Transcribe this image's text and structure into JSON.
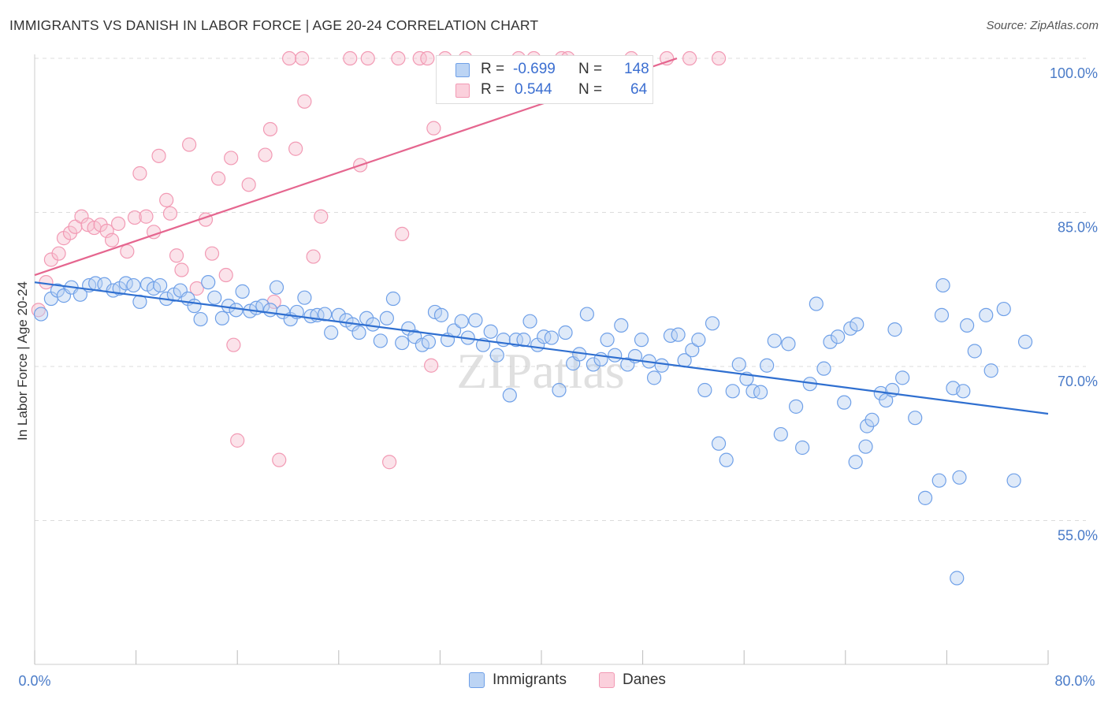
{
  "title": "IMMIGRANTS VS DANISH IN LABOR FORCE | AGE 20-24 CORRELATION CHART",
  "source": "Source: ZipAtlas.com",
  "watermark": "ZIPatlas",
  "legend": {
    "rows": [
      {
        "r_label": "R =",
        "r_value": "-0.699",
        "n_label": "N =",
        "n_value": "148",
        "color": "#a9c8f0"
      },
      {
        "r_label": "R =",
        "r_value": "0.544",
        "n_label": "N =",
        "n_value": "64",
        "color": "#f5b8c8"
      }
    ]
  },
  "bottom_legend": [
    {
      "label": "Immigrants",
      "color": "#a9c8f0"
    },
    {
      "label": "Danes",
      "color": "#f5b8c8"
    }
  ],
  "chart_data": {
    "type": "scatter",
    "title": "IMMIGRANTS VS DANISH IN LABOR FORCE | AGE 20-24 CORRELATION CHART",
    "xlabel": "",
    "ylabel": "In Labor Force | Age 20-24",
    "xlim": [
      0,
      80
    ],
    "ylim": [
      41,
      101
    ],
    "x_tick_labels": [
      "0.0%",
      "80.0%"
    ],
    "y_ticks": [
      55,
      70,
      85,
      100
    ],
    "y_tick_labels": [
      "55.0%",
      "70.0%",
      "85.0%",
      "100.0%"
    ],
    "grid": true,
    "legend_position": "top-center",
    "colors": {
      "immigrants": "#6fa0e8",
      "danes": "#f29ab4",
      "immigrants_line": "#2f6fd0",
      "danes_line": "#e5668f"
    },
    "series": [
      {
        "name": "Immigrants",
        "trend": {
          "x": [
            0,
            80
          ],
          "y": [
            78.2,
            65.4
          ]
        },
        "points": [
          [
            0.5,
            75.1
          ],
          [
            1.3,
            76.6
          ],
          [
            1.8,
            77.4
          ],
          [
            2.3,
            76.9
          ],
          [
            2.9,
            77.7
          ],
          [
            3.6,
            77.0
          ],
          [
            4.3,
            77.9
          ],
          [
            4.8,
            78.1
          ],
          [
            5.5,
            78.0
          ],
          [
            6.2,
            77.4
          ],
          [
            6.7,
            77.6
          ],
          [
            7.2,
            78.1
          ],
          [
            7.8,
            77.9
          ],
          [
            8.3,
            76.3
          ],
          [
            8.9,
            78.0
          ],
          [
            9.4,
            77.6
          ],
          [
            9.9,
            77.9
          ],
          [
            10.4,
            76.6
          ],
          [
            11.0,
            77.0
          ],
          [
            11.5,
            77.4
          ],
          [
            12.1,
            76.6
          ],
          [
            12.6,
            75.9
          ],
          [
            13.1,
            74.6
          ],
          [
            13.7,
            78.2
          ],
          [
            14.2,
            76.7
          ],
          [
            14.8,
            74.7
          ],
          [
            15.3,
            75.9
          ],
          [
            15.9,
            75.5
          ],
          [
            16.4,
            77.3
          ],
          [
            17.0,
            75.4
          ],
          [
            17.5,
            75.7
          ],
          [
            18.0,
            75.9
          ],
          [
            18.6,
            75.5
          ],
          [
            19.1,
            77.7
          ],
          [
            19.6,
            75.3
          ],
          [
            20.2,
            74.6
          ],
          [
            20.7,
            75.3
          ],
          [
            21.3,
            76.7
          ],
          [
            21.8,
            74.9
          ],
          [
            22.3,
            75.0
          ],
          [
            22.9,
            75.1
          ],
          [
            23.4,
            73.3
          ],
          [
            24.0,
            75.0
          ],
          [
            24.6,
            74.5
          ],
          [
            25.1,
            74.1
          ],
          [
            25.6,
            73.3
          ],
          [
            26.2,
            74.7
          ],
          [
            26.7,
            74.1
          ],
          [
            27.3,
            72.5
          ],
          [
            27.8,
            74.7
          ],
          [
            28.3,
            76.6
          ],
          [
            29.0,
            72.3
          ],
          [
            29.5,
            73.7
          ],
          [
            30.0,
            72.9
          ],
          [
            30.6,
            72.1
          ],
          [
            31.1,
            72.4
          ],
          [
            31.6,
            75.3
          ],
          [
            32.1,
            75.0
          ],
          [
            32.6,
            72.6
          ],
          [
            33.1,
            73.5
          ],
          [
            33.7,
            74.4
          ],
          [
            34.2,
            72.8
          ],
          [
            34.8,
            74.5
          ],
          [
            35.4,
            72.1
          ],
          [
            36.0,
            73.4
          ],
          [
            36.5,
            71.1
          ],
          [
            37.0,
            72.6
          ],
          [
            37.5,
            67.2
          ],
          [
            38.0,
            72.6
          ],
          [
            38.6,
            72.6
          ],
          [
            39.1,
            74.4
          ],
          [
            39.7,
            72.1
          ],
          [
            40.2,
            72.9
          ],
          [
            40.8,
            72.8
          ],
          [
            41.4,
            67.7
          ],
          [
            41.9,
            73.3
          ],
          [
            42.5,
            70.3
          ],
          [
            43.0,
            71.2
          ],
          [
            43.6,
            75.1
          ],
          [
            44.1,
            70.2
          ],
          [
            44.7,
            70.7
          ],
          [
            45.2,
            72.6
          ],
          [
            45.8,
            71.1
          ],
          [
            46.3,
            74.0
          ],
          [
            46.8,
            70.2
          ],
          [
            47.4,
            71.0
          ],
          [
            47.9,
            72.6
          ],
          [
            48.5,
            70.5
          ],
          [
            48.9,
            68.9
          ],
          [
            49.5,
            70.1
          ],
          [
            50.2,
            73.0
          ],
          [
            50.8,
            73.1
          ],
          [
            51.3,
            70.6
          ],
          [
            51.9,
            71.6
          ],
          [
            52.4,
            72.6
          ],
          [
            52.9,
            67.7
          ],
          [
            53.5,
            74.2
          ],
          [
            54.0,
            62.5
          ],
          [
            54.6,
            60.9
          ],
          [
            55.1,
            67.6
          ],
          [
            55.6,
            70.2
          ],
          [
            56.2,
            68.8
          ],
          [
            56.7,
            67.6
          ],
          [
            57.3,
            67.5
          ],
          [
            57.8,
            70.1
          ],
          [
            58.4,
            72.5
          ],
          [
            58.9,
            63.4
          ],
          [
            59.5,
            72.2
          ],
          [
            60.1,
            66.1
          ],
          [
            60.6,
            62.1
          ],
          [
            61.2,
            68.3
          ],
          [
            61.7,
            76.1
          ],
          [
            62.3,
            69.8
          ],
          [
            62.8,
            72.4
          ],
          [
            63.4,
            72.9
          ],
          [
            63.9,
            66.5
          ],
          [
            64.4,
            73.7
          ],
          [
            64.9,
            74.1
          ],
          [
            64.8,
            60.7
          ],
          [
            65.6,
            62.2
          ],
          [
            65.7,
            64.2
          ],
          [
            66.1,
            64.8
          ],
          [
            66.8,
            67.4
          ],
          [
            67.2,
            66.7
          ],
          [
            67.7,
            67.7
          ],
          [
            67.9,
            73.6
          ],
          [
            68.5,
            68.9
          ],
          [
            69.5,
            65.0
          ],
          [
            70.3,
            57.2
          ],
          [
            71.4,
            58.9
          ],
          [
            71.6,
            75.0
          ],
          [
            71.7,
            77.9
          ],
          [
            72.5,
            67.9
          ],
          [
            73.0,
            59.2
          ],
          [
            73.3,
            67.6
          ],
          [
            73.6,
            74.0
          ],
          [
            74.2,
            71.5
          ],
          [
            75.1,
            75.0
          ],
          [
            75.5,
            69.6
          ],
          [
            76.5,
            75.6
          ],
          [
            77.3,
            58.9
          ],
          [
            78.2,
            72.4
          ],
          [
            72.8,
            49.4
          ]
        ]
      },
      {
        "name": "Danes",
        "trend": {
          "x": [
            0,
            50.7
          ],
          "y": [
            78.9,
            100.0
          ]
        },
        "points": [
          [
            0.3,
            75.5
          ],
          [
            0.9,
            78.2
          ],
          [
            1.3,
            80.4
          ],
          [
            1.9,
            81.0
          ],
          [
            2.3,
            82.5
          ],
          [
            2.8,
            83.0
          ],
          [
            3.2,
            83.6
          ],
          [
            3.7,
            84.6
          ],
          [
            4.2,
            83.8
          ],
          [
            4.7,
            83.5
          ],
          [
            5.2,
            83.8
          ],
          [
            5.7,
            83.2
          ],
          [
            6.1,
            82.3
          ],
          [
            6.6,
            83.9
          ],
          [
            7.3,
            81.2
          ],
          [
            7.9,
            84.5
          ],
          [
            8.3,
            88.8
          ],
          [
            8.8,
            84.6
          ],
          [
            9.4,
            83.1
          ],
          [
            9.8,
            90.5
          ],
          [
            10.4,
            86.2
          ],
          [
            10.7,
            84.9
          ],
          [
            11.2,
            80.8
          ],
          [
            11.6,
            79.4
          ],
          [
            12.2,
            91.6
          ],
          [
            12.8,
            77.6
          ],
          [
            13.5,
            84.3
          ],
          [
            14.0,
            81.0
          ],
          [
            14.5,
            88.3
          ],
          [
            15.1,
            78.9
          ],
          [
            15.5,
            90.3
          ],
          [
            15.7,
            72.1
          ],
          [
            16.0,
            62.8
          ],
          [
            16.9,
            87.7
          ],
          [
            18.2,
            90.6
          ],
          [
            18.6,
            93.1
          ],
          [
            18.9,
            76.3
          ],
          [
            19.3,
            60.9
          ],
          [
            20.1,
            100.0
          ],
          [
            20.6,
            91.2
          ],
          [
            21.1,
            100.0
          ],
          [
            21.3,
            95.8
          ],
          [
            22.0,
            80.7
          ],
          [
            22.6,
            84.6
          ],
          [
            24.9,
            100.0
          ],
          [
            25.7,
            89.6
          ],
          [
            26.3,
            100.0
          ],
          [
            28.0,
            60.7
          ],
          [
            28.7,
            100.0
          ],
          [
            29.0,
            82.9
          ],
          [
            30.4,
            100.0
          ],
          [
            31.5,
            93.2
          ],
          [
            32.4,
            100.0
          ],
          [
            31.0,
            100.0
          ],
          [
            31.3,
            70.1
          ],
          [
            34.0,
            100.0
          ],
          [
            38.2,
            100.0
          ],
          [
            39.4,
            100.0
          ],
          [
            41.6,
            100.0
          ],
          [
            42.1,
            100.0
          ],
          [
            47.1,
            100.0
          ],
          [
            49.9,
            100.0
          ],
          [
            51.7,
            100.0
          ],
          [
            54.0,
            100.0
          ]
        ]
      }
    ]
  }
}
